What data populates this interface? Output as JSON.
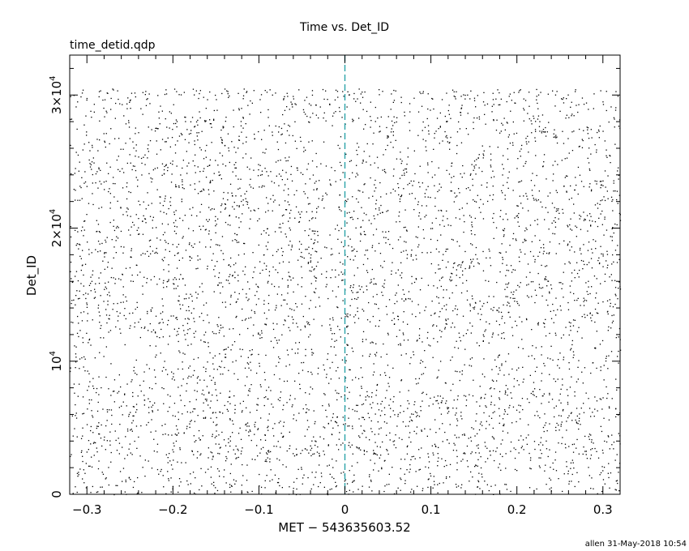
{
  "chart_data": {
    "type": "scatter",
    "title": "Time vs. Det_ID",
    "subtitle": "time_detid.qdp",
    "xlabel": "MET − 543635603.52",
    "ylabel": "Det_ID",
    "xlim": [
      -0.32,
      0.32
    ],
    "ylim": [
      0,
      33000
    ],
    "x_ticks": [
      {
        "value": -0.3,
        "label": "−0.3"
      },
      {
        "value": -0.2,
        "label": "−0.2"
      },
      {
        "value": -0.1,
        "label": "−0.1"
      },
      {
        "value": 0,
        "label": "0"
      },
      {
        "value": 0.1,
        "label": "0.1"
      },
      {
        "value": 0.2,
        "label": "0.2"
      },
      {
        "value": 0.3,
        "label": "0.3"
      }
    ],
    "y_ticks": [
      {
        "value": 0,
        "base": "0",
        "exp": ""
      },
      {
        "value": 10000,
        "base": "10",
        "exp": "4"
      },
      {
        "value": 20000,
        "base": "2×10",
        "exp": "4"
      },
      {
        "value": 30000,
        "base": "3×10",
        "exp": "4"
      }
    ],
    "reference_line": {
      "x": 0,
      "style": "dashed",
      "color": "#2ba3a8"
    },
    "marker_color": "#000000",
    "point_count_estimate": 5000,
    "density_bands": [
      {
        "y_range": [
          0,
          3000
        ],
        "relative_density": 1.0
      },
      {
        "y_range": [
          3000,
          8000
        ],
        "relative_density": 1.3
      },
      {
        "y_range": [
          8000,
          12000
        ],
        "relative_density": 0.8
      },
      {
        "y_range": [
          12000,
          18000
        ],
        "relative_density": 1.1
      },
      {
        "y_range": [
          18000,
          25000
        ],
        "relative_density": 1.2
      },
      {
        "y_range": [
          25000,
          30000
        ],
        "relative_density": 1.0
      },
      {
        "y_range": [
          30000,
          30500
        ],
        "relative_density": 1.6
      }
    ]
  },
  "footer": {
    "stamp": "allen 31-May-2018 10:54"
  }
}
